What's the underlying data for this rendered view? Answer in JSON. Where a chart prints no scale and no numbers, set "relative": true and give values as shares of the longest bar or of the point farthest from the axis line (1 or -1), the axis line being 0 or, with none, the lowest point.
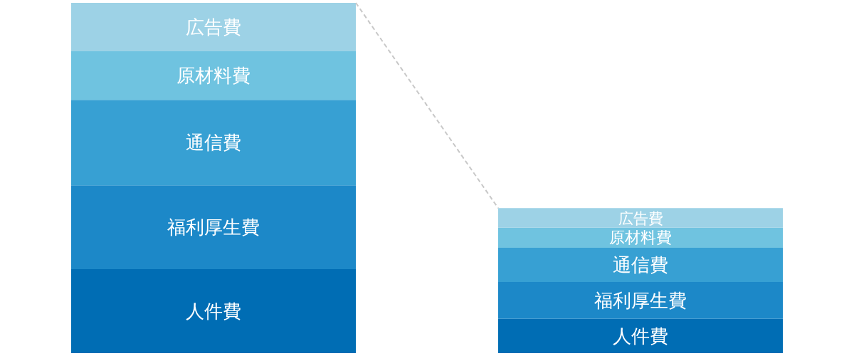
{
  "chart_data": {
    "type": "bar",
    "stacked": true,
    "relative": true,
    "tick_labels": false,
    "categories": [
      null,
      null
    ],
    "series": [
      {
        "name": "人件費",
        "color": "#006db4",
        "values": [
          0.24,
          0.098
        ]
      },
      {
        "name": "福利厚生費",
        "color": "#1c88c8",
        "values": [
          0.239,
          0.105
        ]
      },
      {
        "name": "通信費",
        "color": "#37a0d3",
        "values": [
          0.244,
          0.098
        ]
      },
      {
        "name": "原材料費",
        "color": "#6fc3e0",
        "values": [
          0.139,
          0.057
        ]
      },
      {
        "name": "広告費",
        "color": "#9dd2e6",
        "values": [
          0.138,
          0.056
        ]
      }
    ]
  }
}
